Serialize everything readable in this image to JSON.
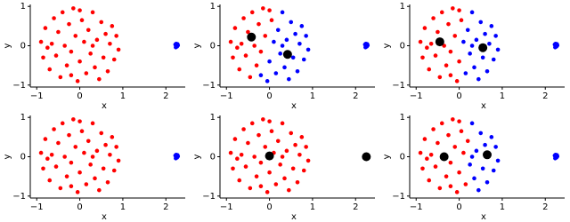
{
  "chart_data": [
    {
      "type": "scatter",
      "xlabel": "x",
      "ylabel": "y",
      "xlim": [
        -1.15,
        2.45
      ],
      "ylim": [
        -1.05,
        1.05
      ],
      "xticks": [
        {
          "value": -1,
          "label": "−1"
        },
        0,
        1,
        2
      ],
      "yticks": [
        {
          "value": -1,
          "label": "−1"
        },
        0,
        1
      ],
      "series": [
        {
          "color": "#ff0000",
          "size": 2.3,
          "x": [
            -0.9,
            -0.85,
            -0.8,
            -0.7,
            -0.65,
            -0.6,
            -0.55,
            -0.5,
            -0.45,
            -0.4,
            -0.35,
            -0.3,
            -0.25,
            -0.2,
            -0.15,
            -0.1,
            -0.05,
            0,
            0.05,
            0.1,
            0.15,
            0.2,
            0.25,
            0.3,
            0.35,
            0.4,
            0.45,
            0.5,
            0.55,
            0.6,
            0.65,
            0.7,
            0.75,
            0.8,
            0.85,
            0.9,
            -0.75,
            -0.2,
            0.3,
            0
          ],
          "values": [
            0.1,
            -0.3,
            0.45,
            -0.6,
            0.05,
            0.7,
            -0.25,
            0.35,
            -0.8,
            0.85,
            0,
            -0.5,
            0.55,
            -0.15,
            0.95,
            0.25,
            -0.9,
            -0.4,
            0.65,
            0.1,
            -0.7,
            0.4,
            -0.2,
            0.85,
            -0.55,
            0.15,
            -0.85,
            0.6,
            -0.3,
            0.3,
            -0.65,
            0.05,
            0.5,
            -0.35,
            0.25,
            -0.1,
            -0.05,
            -0.75,
            0,
            0.9
          ]
        },
        {
          "color": "#0000ff",
          "size": 2.3,
          "x": [
            2.22,
            2.26,
            2.24,
            2.28,
            2.23,
            2.27
          ],
          "values": [
            0.03,
            -0.02,
            0.05,
            0.01,
            -0.04,
            0.04
          ]
        }
      ]
    },
    {
      "type": "scatter",
      "xlabel": "x",
      "ylabel": "y",
      "xlim": [
        -1.15,
        2.45
      ],
      "ylim": [
        -1.05,
        1.05
      ],
      "xticks": [
        {
          "value": -1,
          "label": "−1"
        },
        0,
        1,
        2
      ],
      "yticks": [
        {
          "value": -1,
          "label": "−1"
        },
        0,
        1
      ],
      "series": [
        {
          "color": "#ff0000",
          "size": 2.3,
          "x": [
            -0.9,
            -0.85,
            -0.8,
            -0.7,
            -0.65,
            -0.6,
            -0.55,
            -0.5,
            -0.45,
            -0.4,
            -0.35,
            -0.3,
            -0.25,
            -0.2,
            -0.15,
            -0.1,
            0.05,
            -0.75,
            0
          ],
          "values": [
            0.1,
            -0.3,
            0.45,
            -0.6,
            0.05,
            0.7,
            -0.25,
            0.35,
            -0.8,
            0.85,
            0,
            -0.5,
            0.55,
            -0.15,
            0.95,
            0.25,
            0.65,
            -0.05,
            0.9
          ]
        },
        {
          "color": "#0000ff",
          "size": 2.3,
          "x": [
            -0.05,
            0,
            0.1,
            0.15,
            0.2,
            0.25,
            0.3,
            0.35,
            0.4,
            0.45,
            0.5,
            0.55,
            0.6,
            0.65,
            0.7,
            0.75,
            0.8,
            0.85,
            0.9,
            -0.2,
            0.3,
            2.22,
            2.26,
            2.24,
            2.28,
            2.23,
            2.27
          ],
          "values": [
            -0.9,
            -0.4,
            0.1,
            -0.7,
            0.4,
            -0.2,
            0.85,
            -0.55,
            0.15,
            -0.85,
            0.6,
            -0.3,
            0.3,
            -0.65,
            0.05,
            0.5,
            -0.35,
            0.25,
            -0.1,
            -0.75,
            0,
            0.03,
            -0.02,
            0.05,
            0.01,
            -0.04,
            0.04
          ]
        },
        {
          "color": "#000000",
          "size": 5,
          "x": [
            -0.42,
            0.42
          ],
          "values": [
            0.22,
            -0.22
          ]
        }
      ]
    },
    {
      "type": "scatter",
      "xlabel": "x",
      "ylabel": "y",
      "xlim": [
        -1.15,
        2.45
      ],
      "ylim": [
        -1.05,
        1.05
      ],
      "xticks": [
        {
          "value": -1,
          "label": "−1"
        },
        0,
        1,
        2
      ],
      "yticks": [
        {
          "value": -1,
          "label": "−1"
        },
        0,
        1
      ],
      "series": [
        {
          "color": "#ff0000",
          "size": 2.3,
          "x": [
            -0.9,
            -0.85,
            -0.8,
            -0.7,
            -0.65,
            -0.6,
            -0.55,
            -0.5,
            -0.45,
            -0.4,
            -0.35,
            -0.3,
            -0.25,
            -0.2,
            -0.15,
            -0.1,
            -0.05,
            0,
            0.05,
            -0.75,
            -0.2,
            0
          ],
          "values": [
            0.1,
            -0.3,
            0.45,
            -0.6,
            0.05,
            0.7,
            -0.25,
            0.35,
            -0.8,
            0.85,
            0,
            -0.5,
            0.55,
            -0.15,
            0.95,
            0.25,
            -0.9,
            -0.4,
            0.65,
            -0.05,
            -0.75,
            0.9
          ]
        },
        {
          "color": "#0000ff",
          "size": 2.3,
          "x": [
            0.1,
            0.15,
            0.2,
            0.25,
            0.3,
            0.35,
            0.4,
            0.45,
            0.5,
            0.55,
            0.6,
            0.65,
            0.7,
            0.75,
            0.8,
            0.85,
            0.9,
            0.3,
            2.22,
            2.26,
            2.24,
            2.28,
            2.23,
            2.27
          ],
          "values": [
            0.1,
            -0.7,
            0.4,
            -0.2,
            0.85,
            -0.55,
            0.15,
            -0.85,
            0.6,
            -0.3,
            0.3,
            -0.65,
            0.05,
            0.5,
            -0.35,
            0.25,
            -0.1,
            0,
            0.03,
            -0.02,
            0.05,
            0.01,
            -0.04,
            0.04
          ]
        },
        {
          "color": "#000000",
          "size": 5,
          "x": [
            -0.45,
            0.55
          ],
          "values": [
            0.1,
            -0.05
          ]
        }
      ]
    },
    {
      "type": "scatter",
      "xlabel": "x",
      "ylabel": "y",
      "xlim": [
        -1.15,
        2.45
      ],
      "ylim": [
        -1.05,
        1.05
      ],
      "xticks": [
        {
          "value": -1,
          "label": "−1"
        },
        0,
        1,
        2
      ],
      "yticks": [
        {
          "value": -1,
          "label": "−1"
        },
        0,
        1
      ],
      "series": [
        {
          "color": "#ff0000",
          "size": 2.3,
          "x": [
            -0.9,
            -0.85,
            -0.8,
            -0.7,
            -0.65,
            -0.6,
            -0.55,
            -0.5,
            -0.45,
            -0.4,
            -0.35,
            -0.3,
            -0.25,
            -0.2,
            -0.15,
            -0.1,
            -0.05,
            0,
            0.05,
            0.1,
            0.15,
            0.2,
            0.25,
            0.3,
            0.35,
            0.4,
            0.45,
            0.5,
            0.55,
            0.6,
            0.65,
            0.7,
            0.75,
            0.8,
            0.85,
            0.9,
            -0.75,
            -0.2,
            0.3,
            0
          ],
          "values": [
            0.1,
            -0.3,
            0.45,
            -0.6,
            0.05,
            0.7,
            -0.25,
            0.35,
            -0.8,
            0.85,
            0,
            -0.5,
            0.55,
            -0.15,
            0.95,
            0.25,
            -0.9,
            -0.4,
            0.65,
            0.1,
            -0.7,
            0.4,
            -0.2,
            0.85,
            -0.55,
            0.15,
            -0.85,
            0.6,
            -0.3,
            0.3,
            -0.65,
            0.05,
            0.5,
            -0.35,
            0.25,
            -0.1,
            -0.05,
            -0.75,
            0,
            0.9
          ]
        },
        {
          "color": "#0000ff",
          "size": 2.3,
          "x": [
            2.22,
            2.26,
            2.24,
            2.28,
            2.23,
            2.27
          ],
          "values": [
            0.03,
            -0.02,
            0.05,
            0.01,
            -0.04,
            0.04
          ]
        }
      ]
    },
    {
      "type": "scatter",
      "xlabel": "x",
      "ylabel": "y",
      "xlim": [
        -1.15,
        2.45
      ],
      "ylim": [
        -1.05,
        1.05
      ],
      "xticks": [
        {
          "value": -1,
          "label": "−1"
        },
        0,
        1,
        2
      ],
      "yticks": [
        {
          "value": -1,
          "label": "−1"
        },
        0,
        1
      ],
      "series": [
        {
          "color": "#ff0000",
          "size": 2.3,
          "x": [
            -0.9,
            -0.85,
            -0.8,
            -0.7,
            -0.65,
            -0.6,
            -0.55,
            -0.5,
            -0.45,
            -0.4,
            -0.35,
            -0.3,
            -0.25,
            -0.2,
            -0.15,
            -0.1,
            -0.05,
            0,
            0.05,
            0.1,
            0.15,
            0.2,
            0.25,
            0.3,
            0.35,
            0.4,
            0.45,
            0.5,
            0.55,
            0.6,
            0.65,
            0.7,
            0.75,
            0.8,
            0.85,
            0.9,
            -0.75,
            -0.2,
            0.3,
            0
          ],
          "values": [
            0.1,
            -0.3,
            0.45,
            -0.6,
            0.05,
            0.7,
            -0.25,
            0.35,
            -0.8,
            0.85,
            0,
            -0.5,
            0.55,
            -0.15,
            0.95,
            0.25,
            -0.9,
            -0.4,
            0.65,
            0.1,
            -0.7,
            0.4,
            -0.2,
            0.85,
            -0.55,
            0.15,
            -0.85,
            0.6,
            -0.3,
            0.3,
            -0.65,
            0.05,
            0.5,
            -0.35,
            0.25,
            -0.1,
            -0.05,
            -0.75,
            0,
            0.9
          ]
        },
        {
          "color": "#0000ff",
          "size": 2.3,
          "x": [
            2.22,
            2.26,
            2.24,
            2.28,
            2.23,
            2.27
          ],
          "values": [
            0.03,
            -0.02,
            0.05,
            0.01,
            -0.04,
            0.04
          ]
        },
        {
          "color": "#000000",
          "size": 5,
          "x": [
            0,
            2.25
          ],
          "values": [
            0.02,
            0
          ]
        }
      ]
    },
    {
      "type": "scatter",
      "xlabel": "x",
      "ylabel": "y",
      "xlim": [
        -1.15,
        2.45
      ],
      "ylim": [
        -1.05,
        1.05
      ],
      "xticks": [
        {
          "value": -1,
          "label": "−1"
        },
        0,
        1,
        2
      ],
      "yticks": [
        {
          "value": -1,
          "label": "−1"
        },
        0,
        1
      ],
      "series": [
        {
          "color": "#ff0000",
          "size": 2.3,
          "x": [
            -0.9,
            -0.85,
            -0.8,
            -0.7,
            -0.65,
            -0.6,
            -0.55,
            -0.5,
            -0.45,
            -0.4,
            -0.35,
            -0.3,
            -0.25,
            -0.2,
            -0.15,
            -0.1,
            -0.05,
            0,
            0.05,
            0.1,
            0.15,
            0.2,
            -0.75,
            -0.2,
            0
          ],
          "values": [
            0.1,
            -0.3,
            0.45,
            -0.6,
            0.05,
            0.7,
            -0.25,
            0.35,
            -0.8,
            0.85,
            0,
            -0.5,
            0.55,
            -0.15,
            0.95,
            0.25,
            -0.9,
            -0.4,
            0.65,
            0.1,
            -0.7,
            0.4,
            -0.05,
            -0.75,
            0.9
          ]
        },
        {
          "color": "#0000ff",
          "size": 2.3,
          "x": [
            0.25,
            0.3,
            0.35,
            0.4,
            0.45,
            0.5,
            0.55,
            0.6,
            0.65,
            0.7,
            0.75,
            0.8,
            0.85,
            0.9,
            0.3,
            2.22,
            2.26,
            2.24,
            2.28,
            2.23,
            2.27
          ],
          "values": [
            -0.2,
            0.85,
            -0.55,
            0.15,
            -0.85,
            0.6,
            -0.3,
            0.3,
            -0.65,
            0.05,
            0.5,
            -0.35,
            0.25,
            -0.1,
            0,
            0.03,
            -0.02,
            0.05,
            0.01,
            -0.04,
            0.04
          ]
        },
        {
          "color": "#000000",
          "size": 5,
          "x": [
            -0.35,
            0.65
          ],
          "values": [
            0,
            0.05
          ]
        }
      ]
    }
  ]
}
